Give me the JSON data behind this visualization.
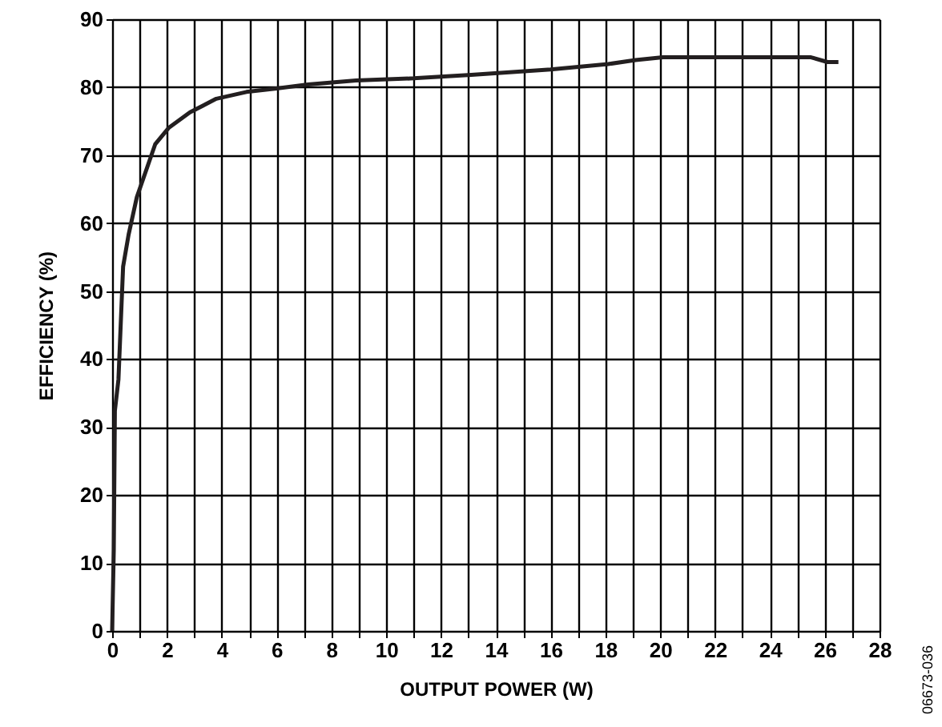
{
  "chart_data": {
    "type": "line",
    "xlabel": "OUTPUT POWER (W)",
    "ylabel": "EFFICIENCY (%)",
    "annotations": [
      "06673-036"
    ],
    "series": [
      {
        "color": "#231f20",
        "x": [
          0,
          0.06,
          0.1,
          0.23,
          0.4,
          0.6,
          0.9,
          1.57,
          2.06,
          2.84,
          3.8,
          4.9,
          6.0,
          7.15,
          8.9,
          11.0,
          13.1,
          16.0,
          18.1,
          19.1,
          20.1,
          25.5,
          26.1,
          26.5
        ],
        "values": [
          0,
          12,
          32.4,
          37,
          53.6,
          58.3,
          63.8,
          71.6,
          74,
          76.3,
          78.3,
          79.3,
          79.8,
          80.4,
          81,
          81.3,
          81.8,
          82.6,
          83.4,
          84.0,
          84.4,
          84.4,
          83.7,
          83.7
        ]
      }
    ],
    "xlim": [
      0,
      28
    ],
    "ylim": [
      0,
      90
    ],
    "xticks": [
      0,
      {
        "value": 1,
        "label": null
      },
      2,
      {
        "value": 3,
        "label": null
      },
      4,
      {
        "value": 5,
        "label": null
      },
      6,
      {
        "value": 7,
        "label": null
      },
      8,
      {
        "value": 9,
        "label": null
      },
      10,
      {
        "value": 11,
        "label": null
      },
      12,
      {
        "value": 13,
        "label": null
      },
      14,
      {
        "value": 15,
        "label": null
      },
      16,
      {
        "value": 17,
        "label": null
      },
      18,
      {
        "value": 19,
        "label": null
      },
      20,
      {
        "value": 21,
        "label": null
      },
      22,
      {
        "value": 23,
        "label": null
      },
      24,
      {
        "value": 25,
        "label": null
      },
      26,
      {
        "value": 27,
        "label": null
      },
      28
    ],
    "yticks": [
      0,
      10,
      20,
      30,
      40,
      50,
      60,
      70,
      80,
      90
    ],
    "grid": true,
    "marker": "none",
    "line_style": "solid"
  }
}
